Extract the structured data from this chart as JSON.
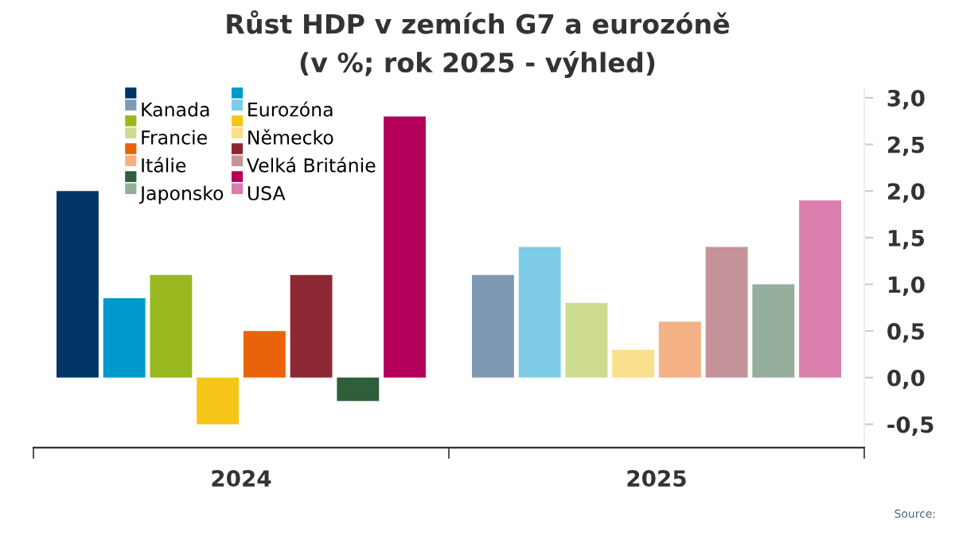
{
  "chart_data": {
    "type": "bar",
    "title": "Růst HDP v zemích G7 a eurozóně",
    "subtitle": "(v %; rok 2025 - výhled)",
    "categories": [
      "2024",
      "2025"
    ],
    "series": [
      {
        "name": "Kanada",
        "colors": [
          "#003366",
          "#7f99b5"
        ],
        "values": [
          2.0,
          1.1
        ]
      },
      {
        "name": "Eurozóna",
        "colors": [
          "#0099cc",
          "#7fcce6"
        ],
        "values": [
          0.85,
          1.4
        ]
      },
      {
        "name": "Francie",
        "colors": [
          "#99b81f",
          "#ccdb8f"
        ],
        "values": [
          1.1,
          0.8
        ]
      },
      {
        "name": "Německo",
        "colors": [
          "#f5c518",
          "#fae08c"
        ],
        "values": [
          -0.5,
          0.3
        ]
      },
      {
        "name": "Itálie",
        "colors": [
          "#e8630a",
          "#f3b185"
        ],
        "values": [
          0.5,
          0.6
        ]
      },
      {
        "name": "Velká Británie",
        "colors": [
          "#8b2833",
          "#c59399"
        ],
        "values": [
          1.1,
          1.4
        ]
      },
      {
        "name": "Japonsko",
        "colors": [
          "#2e5e3a",
          "#96ae9c"
        ],
        "values": [
          -0.25,
          1.0
        ]
      },
      {
        "name": "USA",
        "colors": [
          "#b5005b",
          "#da7fad"
        ],
        "values": [
          2.8,
          1.9
        ]
      }
    ],
    "ylim": [
      -0.75,
      3.1
    ],
    "yticks": [
      {
        "value": -0.5,
        "label": "-0,5"
      },
      {
        "value": 0,
        "label": "0,0"
      },
      {
        "value": 0.5,
        "label": "0,5"
      },
      {
        "value": 1,
        "label": "1,0"
      },
      {
        "value": 1.5,
        "label": "1,5"
      },
      {
        "value": 2,
        "label": "2,0"
      },
      {
        "value": 2.5,
        "label": "2,5"
      },
      {
        "value": 3,
        "label": "3,0"
      }
    ],
    "grid": false,
    "legend": "top left",
    "annotations": [
      "Source:"
    ]
  }
}
